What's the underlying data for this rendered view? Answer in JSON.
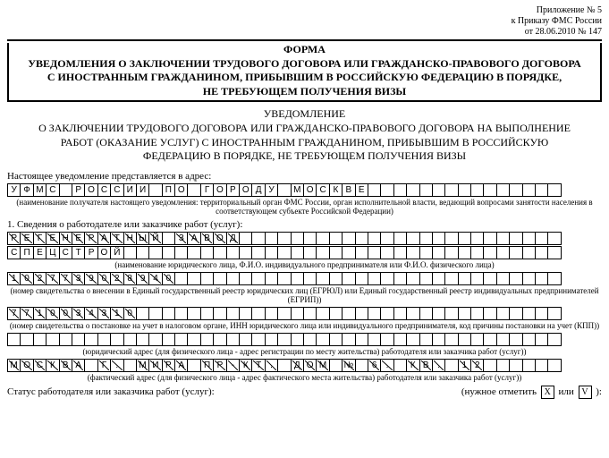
{
  "header_right": {
    "line1": "Приложение № 5",
    "line2": "к Приказу ФМС России",
    "line3": "от 28.06.2010 № 147"
  },
  "form_title": {
    "l1": "ФОРМА",
    "l2": "УВЕДОМЛЕНИЯ О ЗАКЛЮЧЕНИИ ТРУДОВОГО ДОГОВОРА ИЛИ ГРАЖДАНСКО-ПРАВОВОГО ДОГОВОРА",
    "l3": "С ИНОСТРАННЫМ ГРАЖДАНИНОМ, ПРИБЫВШИМ В РОССИЙСКУЮ ФЕДЕРАЦИЮ В ПОРЯДКЕ,",
    "l4": "НЕ ТРЕБУЮЩЕМ ПОЛУЧЕНИЯ ВИЗЫ"
  },
  "notice_title": {
    "l1": "УВЕДОМЛЕНИЕ",
    "l2": "О ЗАКЛЮЧЕНИИ ТРУДОВОГО ДОГОВОРА ИЛИ ГРАЖДАНСКО-ПРАВОВОГО ДОГОВОРА НА ВЫПОЛНЕНИЕ",
    "l3": "РАБОТ (ОКАЗАНИЕ УСЛУГ) С ИНОСТРАННЫМ ГРАЖДАНИНОМ, ПРИБЫВШИМ В РОССИЙСКУЮ",
    "l4": "ФЕДЕРАЦИЮ В ПОРЯДКЕ, НЕ ТРЕБУЮЩЕМ ПОЛУЧЕНИЯ ВИЗЫ"
  },
  "labels": {
    "address": "Настоящее уведомление представляется в адрес:",
    "address_hint": "(наименование получателя настоящего уведомления: территориальный орган ФМС России, орган исполнительной власти, ведающий вопросами занятости населения в соответствующем субъекте Российской Федерации)",
    "section1": "1. Сведения о работодателе или заказчике работ (услуг):",
    "name_hint": "(наименование юридического лица, Ф.И.О. индивидуального предпринимателя или Ф.И.О. физического лица)",
    "reg_hint": "(номер свидетельства о внесении в Единый государственный реестр юридических лиц (ЕГРЮЛ) или Единый государственный реестр индивидуальных предпринимателей (ЕГРИП))",
    "tax_hint": "(номер свидетельства о постановке на учет в налоговом органе, ИНН юридического лица или индивидуального предпринимателя, код причины постановки на учет (КПП))",
    "legal_addr_hint": "(юридический адрес (для физического лица - адрес регистрации по месту жительства) работодателя или заказчика работ (услуг))",
    "fact_addr_hint": "(фактический адрес (для физического лица - адрес фактического места жительства) работодателя или заказчика работ (услуг))",
    "status": "Статус работодателя или заказчика работ (услуг):",
    "mark_hint": "(нужное отметить",
    "or": "или"
  },
  "rows": {
    "cols": 43,
    "address_row": "УФМС РОССИИ ПО ГОРОДУ МОСКВЕ",
    "name_row1": "РЕГЕНЕРАТНЫЙ ЗАВОД",
    "name_row2": "СПЕЦСТРОЙ",
    "reg_row": "1027739028940",
    "tax_row": "7710034310",
    "legal_addr": "",
    "fact_addr": "МОСКВА Г. МИРА ПР-КТ. ДОМ № 6. КВ. 12"
  },
  "diag_rows": [
    "name_row1",
    "reg_row",
    "tax_row",
    "fact_addr"
  ],
  "checkbox": {
    "x": "X",
    "v": "V",
    "close": "):"
  }
}
